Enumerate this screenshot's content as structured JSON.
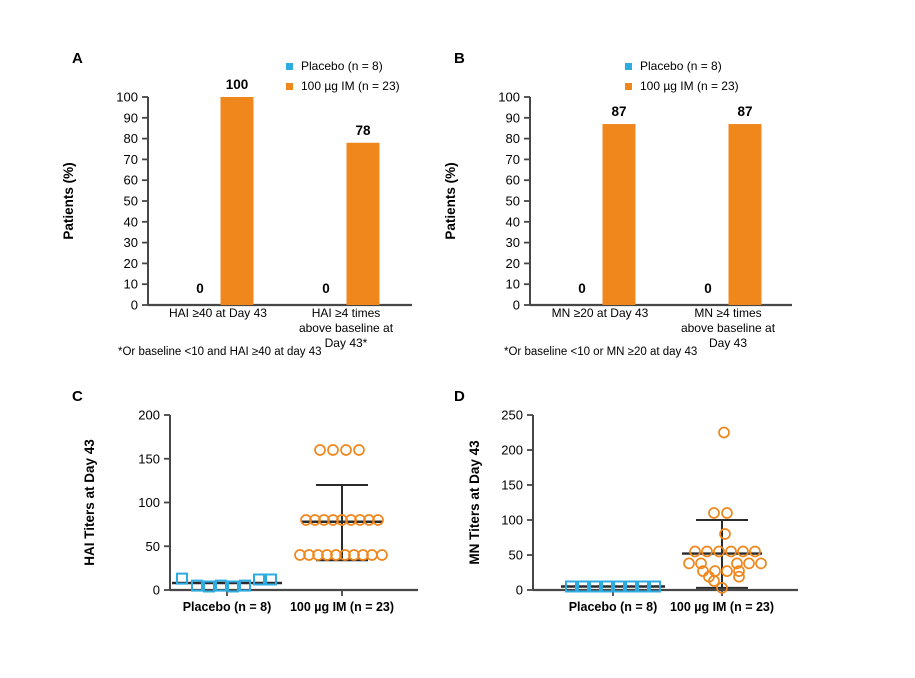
{
  "colors": {
    "placebo": "#2EACE2",
    "treatment": "#F0871D",
    "axis": "#474747",
    "stat_lines": "#2B2B2B",
    "text": "#000000"
  },
  "chart_data": [
    {
      "panel_label": "A",
      "type": "bar",
      "ylabel": "Patients (%)",
      "ylim": [
        0,
        100
      ],
      "ytick_step": 10,
      "legend": [
        "Placebo (n = 8)",
        "100 µg IM (n = 23)"
      ],
      "legend_position": "top",
      "categories": [
        [
          "HAI ≥40 at Day 43"
        ],
        [
          "HAI ≥4 times",
          "above baseline at",
          "Day 43*"
        ]
      ],
      "series": [
        {
          "name": "Placebo (n = 8)",
          "color_key": "placebo",
          "values": [
            0,
            0
          ]
        },
        {
          "name": "100 µg IM (n = 23)",
          "color_key": "treatment",
          "values": [
            100,
            78
          ]
        }
      ],
      "footnote": "*Or baseline <10 and HAI ≥40 at day 43"
    },
    {
      "panel_label": "B",
      "type": "bar",
      "ylabel": "Patients (%)",
      "ylim": [
        0,
        100
      ],
      "ytick_step": 10,
      "legend": [
        "Placebo (n = 8)",
        "100 µg IM (n = 23)"
      ],
      "legend_position": "top",
      "categories": [
        [
          "MN ≥20 at Day 43"
        ],
        [
          "MN ≥4 times",
          "above baseline at",
          "Day 43"
        ]
      ],
      "series": [
        {
          "name": "Placebo (n = 8)",
          "color_key": "placebo",
          "values": [
            0,
            0
          ]
        },
        {
          "name": "100 µg IM (n = 23)",
          "color_key": "treatment",
          "values": [
            87,
            87
          ]
        }
      ],
      "footnote": "*Or baseline <10 or MN ≥20 at day 43"
    },
    {
      "panel_label": "C",
      "type": "scatter",
      "ylabel": "HAI Titers at Day 43",
      "ylim": [
        0,
        200
      ],
      "ytick_step": 50,
      "groups": [
        {
          "label": "Placebo (n = 8)",
          "marker": "square",
          "color_key": "placebo",
          "points": [
            [
              13,
              -45
            ],
            [
              5,
              -30
            ],
            [
              4,
              -18
            ],
            [
              5,
              -6
            ],
            [
              4,
              6
            ],
            [
              5,
              18
            ],
            [
              12,
              32
            ],
            [
              12,
              44
            ]
          ],
          "mean": 8,
          "mean_halfwidth": 55,
          "err_low": null,
          "err_high": null,
          "cap_halfwidth": null
        },
        {
          "label": "100 µg IM (n = 23)",
          "marker": "circle",
          "color_key": "treatment",
          "points": [
            [
              160,
              -22
            ],
            [
              160,
              -9
            ],
            [
              160,
              4
            ],
            [
              160,
              17
            ],
            [
              80,
              -36
            ],
            [
              80,
              -27
            ],
            [
              80,
              -18
            ],
            [
              80,
              -9
            ],
            [
              80,
              0
            ],
            [
              80,
              9
            ],
            [
              80,
              18
            ],
            [
              80,
              27
            ],
            [
              80,
              36
            ],
            [
              40,
              -42
            ],
            [
              40,
              -33
            ],
            [
              40,
              -24
            ],
            [
              40,
              -15
            ],
            [
              40,
              -6
            ],
            [
              40,
              3
            ],
            [
              40,
              12
            ],
            [
              40,
              21
            ],
            [
              40,
              30
            ],
            [
              40,
              40
            ]
          ],
          "mean": 78,
          "mean_halfwidth": 40,
          "err_low": 34,
          "err_high": 120,
          "cap_halfwidth": 26
        }
      ]
    },
    {
      "panel_label": "D",
      "type": "scatter",
      "ylabel": "MN Titers at Day 43",
      "ylim": [
        0,
        250
      ],
      "ytick_step": 50,
      "groups": [
        {
          "label": "Placebo (n = 8)",
          "marker": "square",
          "color_key": "placebo",
          "points": [
            [
              5,
              -42
            ],
            [
              5,
              -30
            ],
            [
              5,
              -18
            ],
            [
              5,
              -6
            ],
            [
              5,
              6
            ],
            [
              5,
              18
            ],
            [
              5,
              30
            ],
            [
              5,
              42
            ]
          ],
          "mean": 5,
          "mean_halfwidth": 52,
          "err_low": null,
          "err_high": null,
          "cap_halfwidth": null
        },
        {
          "label": "100 µg IM (n = 23)",
          "marker": "circle",
          "color_key": "treatment",
          "points": [
            [
              225,
              2
            ],
            [
              110,
              -8
            ],
            [
              110,
              5
            ],
            [
              80,
              3
            ],
            [
              55,
              -27
            ],
            [
              55,
              -15
            ],
            [
              55,
              -3
            ],
            [
              55,
              9
            ],
            [
              55,
              21
            ],
            [
              55,
              33
            ],
            [
              38,
              -33
            ],
            [
              38,
              -21
            ],
            [
              38,
              15
            ],
            [
              38,
              27
            ],
            [
              38,
              39
            ],
            [
              27,
              -19
            ],
            [
              27,
              -7
            ],
            [
              27,
              5
            ],
            [
              27,
              17
            ],
            [
              19,
              -13
            ],
            [
              19,
              17
            ],
            [
              13,
              -8
            ],
            [
              3,
              0
            ]
          ],
          "mean": 52,
          "mean_halfwidth": 40,
          "err_low": 3,
          "err_high": 100,
          "cap_halfwidth": 26
        }
      ]
    }
  ]
}
